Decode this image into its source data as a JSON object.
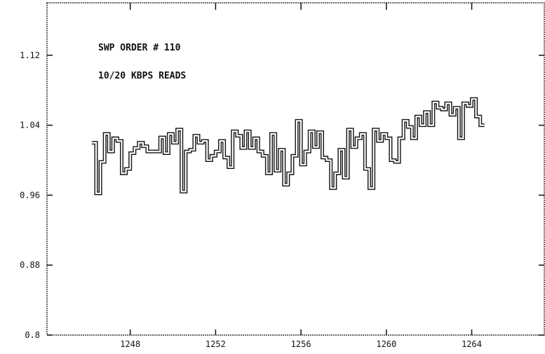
{
  "chart_data": {
    "type": "line",
    "step": true,
    "annotations": [
      "SWP ORDER # 110",
      "10/20 KBPS READS"
    ],
    "xticks": [
      1248,
      1252,
      1256,
      1260,
      1264
    ],
    "xtick_labels": [
      "1248",
      "1252",
      "1256",
      "1260",
      "1264"
    ],
    "yticks": [
      0.8,
      0.88,
      0.96,
      1.04,
      1.12
    ],
    "ytick_labels": [
      "0.8",
      "0.88",
      "0.96",
      "1.04",
      "1.12"
    ],
    "xlim": [
      1244.1,
      1267.4
    ],
    "ylim": [
      0.8,
      1.18
    ],
    "grid": false,
    "series": [
      {
        "x": [
          1246.2,
          1246.4,
          1246.6,
          1246.8,
          1247.0,
          1247.2,
          1247.4,
          1247.6,
          1247.8,
          1248.0,
          1248.2,
          1248.4,
          1248.6,
          1248.8,
          1249.0,
          1249.2,
          1249.4,
          1249.6,
          1249.8,
          1250.0,
          1250.2,
          1250.4,
          1250.6,
          1250.8,
          1251.0,
          1251.2,
          1251.4,
          1251.6,
          1251.8,
          1252.0,
          1252.2,
          1252.4,
          1252.6,
          1252.8,
          1253.0,
          1253.2,
          1253.4,
          1253.6,
          1253.8,
          1254.0,
          1254.2,
          1254.4,
          1254.6,
          1254.8,
          1255.0,
          1255.2,
          1255.4,
          1255.6,
          1255.8,
          1256.0,
          1256.2,
          1256.4,
          1256.6,
          1256.8,
          1257.0,
          1257.2,
          1257.4,
          1257.6,
          1257.8,
          1258.0,
          1258.2,
          1258.4,
          1258.6,
          1258.8,
          1259.0,
          1259.2,
          1259.4,
          1259.6,
          1259.8,
          1260.0,
          1260.2,
          1260.4,
          1260.6,
          1260.8,
          1261.0,
          1261.2,
          1261.4,
          1261.6,
          1261.8,
          1262.0,
          1262.2,
          1262.4,
          1262.6,
          1262.8,
          1263.0,
          1263.2,
          1263.4,
          1263.6,
          1263.8,
          1264.0,
          1264.2,
          1264.4
        ],
        "y": [
          1.02,
          0.962,
          0.998,
          1.03,
          1.01,
          1.025,
          1.022,
          0.985,
          0.99,
          1.008,
          1.014,
          1.02,
          1.016,
          1.01,
          1.01,
          1.01,
          1.026,
          1.008,
          1.03,
          1.02,
          1.035,
          0.964,
          1.01,
          1.012,
          1.028,
          1.02,
          1.022,
          1.0,
          1.005,
          1.01,
          1.022,
          1.003,
          0.992,
          1.033,
          1.028,
          1.014,
          1.033,
          1.014,
          1.025,
          1.01,
          1.005,
          0.985,
          1.03,
          0.988,
          1.012,
          0.972,
          0.985,
          1.005,
          1.045,
          0.995,
          1.01,
          1.033,
          1.015,
          1.032,
          1.003,
          1.0,
          0.968,
          0.985,
          1.012,
          0.98,
          1.035,
          1.015,
          1.025,
          1.03,
          0.99,
          0.968,
          1.035,
          1.022,
          1.03,
          1.025,
          1.0,
          0.998,
          1.025,
          1.045,
          1.038,
          1.025,
          1.05,
          1.04,
          1.055,
          1.04,
          1.066,
          1.06,
          1.058,
          1.065,
          1.052,
          1.06,
          1.025,
          1.065,
          1.062,
          1.07,
          1.05,
          1.04
        ]
      }
    ]
  }
}
